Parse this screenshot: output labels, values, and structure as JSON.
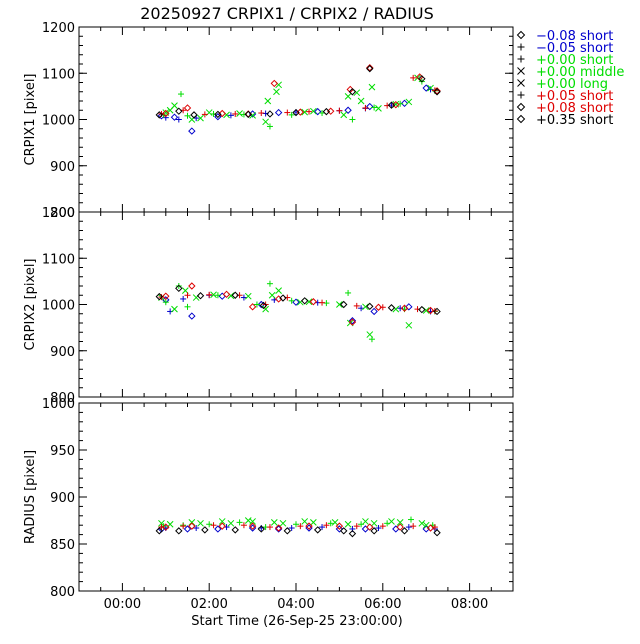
{
  "title": "20250927 CRPIX1 / CRPIX2 / RADIUS",
  "xlabel": "Start Time (26-Sep-25 23:00:00)",
  "legend": [
    {
      "marker": "diamond",
      "label": "−0.08 short",
      "color": "#0000cc"
    },
    {
      "marker": "plus",
      "label": "−0.05 short",
      "color": "#0000cc"
    },
    {
      "marker": "plus",
      "label": "+0.00 short",
      "color": "#00dd00"
    },
    {
      "marker": "cross",
      "label": "+0.00 middle",
      "color": "#00dd00"
    },
    {
      "marker": "cross",
      "label": "+0.00 long",
      "color": "#00dd00"
    },
    {
      "marker": "plus",
      "label": "+0.05 short",
      "color": "#dd0000"
    },
    {
      "marker": "diamond",
      "label": "+0.08 short",
      "color": "#dd0000"
    },
    {
      "marker": "diamond",
      "label": "+0.35 short",
      "color": "#000000"
    }
  ],
  "chart_data": [
    {
      "type": "scatter",
      "ylabel": "CRPIX1 [pixel]",
      "xlim": [
        -1,
        9
      ],
      "ylim": [
        800,
        1200
      ],
      "yticks": [
        "800",
        "900",
        "1000",
        "1100",
        "1200"
      ],
      "series": [
        {
          "name": "−0.08 short",
          "x": [
            0.9,
            1.2,
            1.6,
            2.2,
            3.0,
            3.6,
            4.5,
            5.2,
            5.7,
            6.5,
            7.0
          ],
          "y": [
            1008,
            1005,
            975,
            1006,
            1012,
            1015,
            1017,
            1020,
            1028,
            1035,
            1068
          ]
        },
        {
          "name": "−0.05 short",
          "x": [
            1.0,
            1.3,
            1.7,
            2.5,
            3.3,
            4.0,
            5.0,
            5.6,
            6.2,
            7.1
          ],
          "y": [
            1004,
            1000,
            1003,
            1009,
            1013,
            1016,
            1019,
            1024,
            1031,
            1065
          ]
        },
        {
          "name": "+0.00 short",
          "x": [
            0.95,
            1.35,
            1.5,
            2.1,
            2.8,
            3.4,
            3.9,
            4.6,
            5.3,
            5.8,
            6.4,
            6.9,
            7.2
          ],
          "y": [
            1010,
            1055,
            1008,
            1012,
            1011,
            985,
            1010,
            1014,
            1000,
            1026,
            1034,
            1082,
            1062
          ]
        },
        {
          "name": "+0.00 middle",
          "x": [
            1.0,
            1.2,
            1.8,
            2.4,
            3.0,
            3.35,
            3.55,
            4.2,
            5.2,
            5.5,
            5.75,
            6.3,
            6.8
          ],
          "y": [
            1015,
            1030,
            1003,
            1010,
            1009,
            1040,
            1060,
            1016,
            1050,
            1040,
            1070,
            1033,
            1090
          ]
        },
        {
          "name": "+0.00 long",
          "x": [
            1.1,
            1.6,
            2.0,
            2.7,
            3.3,
            3.6,
            4.4,
            5.1,
            5.4,
            5.9,
            6.6,
            7.1
          ],
          "y": [
            1020,
            1000,
            1015,
            1013,
            995,
            1075,
            1018,
            1010,
            1058,
            1024,
            1038,
            1068
          ]
        },
        {
          "name": "+0.05 short",
          "x": [
            0.9,
            1.4,
            1.9,
            2.6,
            3.2,
            3.8,
            4.3,
            5.0,
            5.6,
            6.1,
            6.7,
            7.2
          ],
          "y": [
            1012,
            1020,
            1011,
            1012,
            1014,
            1015,
            1017,
            1019,
            1025,
            1030,
            1090,
            1063
          ]
        },
        {
          "name": "+0.08 short",
          "x": [
            1.0,
            1.5,
            2.3,
            2.9,
            3.5,
            4.1,
            4.8,
            5.25,
            5.7,
            6.3,
            6.85,
            7.25
          ],
          "y": [
            1013,
            1025,
            1013,
            1012,
            1078,
            1016,
            1018,
            1065,
            1112,
            1032,
            1092,
            1062
          ]
        },
        {
          "name": "+0.35 short",
          "x": [
            0.85,
            1.3,
            1.65,
            2.2,
            2.9,
            3.4,
            4.0,
            4.7,
            5.3,
            5.7,
            6.2,
            6.9,
            7.25
          ],
          "y": [
            1010,
            1018,
            1010,
            1011,
            1011,
            1012,
            1015,
            1017,
            1060,
            1110,
            1031,
            1088,
            1060
          ]
        }
      ]
    },
    {
      "type": "scatter",
      "ylabel": "CRPIX2 [pixel]",
      "xlim": [
        -1,
        9
      ],
      "ylim": [
        800,
        1200
      ],
      "yticks": [
        "800",
        "900",
        "1000",
        "1100",
        "1200"
      ],
      "series": [
        {
          "name": "−0.08 short",
          "x": [
            1.0,
            1.6,
            2.3,
            3.2,
            4.0,
            5.3,
            5.8,
            6.6
          ],
          "y": [
            1010,
            975,
            1018,
            1000,
            1005,
            965,
            985,
            995
          ]
        },
        {
          "name": "−0.05 short",
          "x": [
            1.1,
            1.4,
            2.0,
            2.8,
            3.5,
            4.5,
            5.5,
            6.4,
            7.1
          ],
          "y": [
            985,
            1012,
            1020,
            1015,
            1010,
            1004,
            992,
            992,
            985
          ]
        },
        {
          "name": "+0.00 short",
          "x": [
            1.0,
            1.3,
            1.5,
            2.2,
            3.1,
            3.4,
            3.9,
            4.7,
            5.2,
            5.75,
            6.5,
            7.2
          ],
          "y": [
            1005,
            1040,
            995,
            1020,
            1000,
            1045,
            1008,
            1003,
            1025,
            925,
            990,
            985
          ]
        },
        {
          "name": "+0.00 middle",
          "x": [
            1.2,
            1.7,
            2.5,
            3.3,
            3.6,
            4.3,
            5.25,
            5.7,
            6.6
          ],
          "y": [
            990,
            1015,
            1019,
            990,
            1030,
            1006,
            960,
            935,
            955
          ]
        },
        {
          "name": "+0.00 long",
          "x": [
            0.9,
            1.45,
            2.1,
            2.9,
            3.45,
            4.1,
            5.0,
            5.6,
            6.3,
            7.0
          ],
          "y": [
            1015,
            1030,
            1021,
            1018,
            1020,
            1005,
            1000,
            995,
            990,
            987
          ]
        },
        {
          "name": "+0.05 short",
          "x": [
            0.9,
            1.5,
            2.0,
            2.7,
            3.3,
            3.8,
            4.6,
            5.4,
            6.0,
            6.8,
            7.2
          ],
          "y": [
            1016,
            1020,
            1021,
            1020,
            1000,
            1015,
            1004,
            997,
            994,
            990,
            986
          ]
        },
        {
          "name": "+0.08 short",
          "x": [
            1.0,
            1.6,
            2.4,
            3.0,
            3.6,
            4.4,
            5.3,
            5.9,
            6.5,
            7.1
          ],
          "y": [
            1018,
            1040,
            1022,
            995,
            1012,
            1006,
            962,
            994,
            992,
            987
          ]
        },
        {
          "name": "+0.35 short",
          "x": [
            0.85,
            1.3,
            1.8,
            2.6,
            3.25,
            3.7,
            4.2,
            5.1,
            5.7,
            6.2,
            6.9,
            7.25
          ],
          "y": [
            1017,
            1035,
            1019,
            1020,
            998,
            1014,
            1008,
            1000,
            996,
            993,
            989,
            985
          ]
        }
      ]
    },
    {
      "type": "scatter",
      "ylabel": "RADIUS [pixel]",
      "xlim": [
        -1,
        9
      ],
      "ylim": [
        800,
        1000
      ],
      "yticks": [
        "800",
        "850",
        "900",
        "950",
        "1000"
      ],
      "xticks": [
        "00:00",
        "02:00",
        "04:00",
        "06:00",
        "08:00"
      ],
      "series": [
        {
          "name": "−0.08 short",
          "x": [
            0.9,
            1.5,
            2.2,
            3.0,
            3.6,
            4.3,
            5.0,
            5.6,
            6.3,
            7.0
          ],
          "y": [
            866,
            866,
            866,
            867,
            866,
            867,
            866,
            866,
            866,
            866
          ]
        },
        {
          "name": "−0.05 short",
          "x": [
            1.0,
            1.7,
            2.4,
            3.2,
            3.9,
            4.6,
            5.3,
            5.9,
            6.6,
            7.2
          ],
          "y": [
            867,
            867,
            868,
            867,
            867,
            868,
            866,
            867,
            868,
            866
          ]
        },
        {
          "name": "+0.00 short",
          "x": [
            0.95,
            1.4,
            2.0,
            2.7,
            3.3,
            4.0,
            4.8,
            5.5,
            6.1,
            6.65,
            7.15
          ],
          "y": [
            869,
            870,
            871,
            873,
            868,
            871,
            872,
            871,
            872,
            876,
            870
          ]
        },
        {
          "name": "+0.00 middle",
          "x": [
            1.1,
            1.8,
            2.5,
            3.0,
            3.7,
            4.4,
            5.2,
            5.8,
            6.4,
            7.0
          ],
          "y": [
            871,
            872,
            872,
            874,
            872,
            873,
            871,
            872,
            873,
            870
          ]
        },
        {
          "name": "+0.00 long",
          "x": [
            0.9,
            1.6,
            2.3,
            2.9,
            3.5,
            4.2,
            4.9,
            5.6,
            6.2,
            6.9
          ],
          "y": [
            872,
            873,
            874,
            875,
            873,
            874,
            873,
            874,
            874,
            872
          ]
        },
        {
          "name": "+0.05 short",
          "x": [
            0.9,
            1.4,
            2.1,
            2.8,
            3.4,
            4.1,
            4.7,
            5.4,
            6.0,
            6.7,
            7.2
          ],
          "y": [
            868,
            869,
            870,
            870,
            868,
            869,
            870,
            869,
            869,
            869,
            868
          ]
        },
        {
          "name": "+0.08 short",
          "x": [
            1.0,
            1.6,
            2.3,
            3.0,
            3.6,
            4.3,
            5.0,
            5.7,
            6.4,
            7.1
          ],
          "y": [
            868,
            869,
            869,
            869,
            867,
            869,
            869,
            868,
            868,
            867
          ]
        },
        {
          "name": "+0.35 short",
          "x": [
            0.85,
            1.3,
            1.9,
            2.6,
            3.2,
            3.8,
            4.5,
            5.1,
            5.3,
            5.8,
            6.5,
            7.25
          ],
          "y": [
            864,
            864,
            865,
            865,
            866,
            864,
            865,
            864,
            861,
            864,
            864,
            862
          ]
        }
      ]
    }
  ]
}
